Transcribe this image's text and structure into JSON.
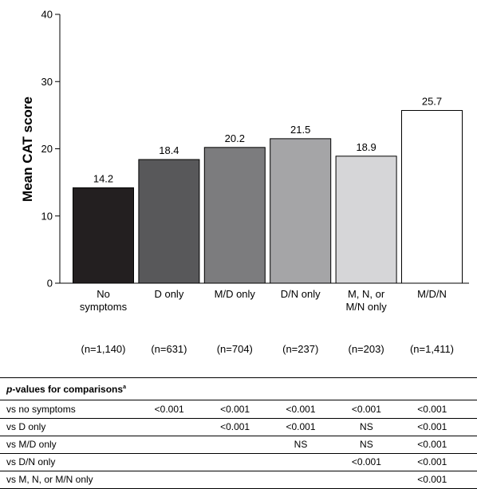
{
  "chart_data": {
    "type": "bar",
    "ylabel": "Mean CAT score",
    "xlabel": "",
    "ylim": [
      0,
      40
    ],
    "yticks": [
      0,
      10,
      20,
      30,
      40
    ],
    "categories": [
      {
        "label_lines": [
          "No",
          "symptoms"
        ],
        "n": "(n=1,140)"
      },
      {
        "label_lines": [
          "D only"
        ],
        "n": "(n=631)"
      },
      {
        "label_lines": [
          "M/D only"
        ],
        "n": "(n=704)"
      },
      {
        "label_lines": [
          "D/N only"
        ],
        "n": "(n=237)"
      },
      {
        "label_lines": [
          "M, N, or",
          "M/N only"
        ],
        "n": "(n=203)"
      },
      {
        "label_lines": [
          "M/D/N"
        ],
        "n": "(n=1,411)"
      }
    ],
    "values": [
      14.2,
      18.4,
      20.2,
      21.5,
      18.9,
      25.7
    ],
    "value_labels": [
      "14.2",
      "18.4",
      "20.2",
      "21.5",
      "18.9",
      "25.7"
    ],
    "bar_colors": [
      "#231f20",
      "#58585a",
      "#7c7c7e",
      "#a5a5a7",
      "#d6d6d8",
      "#ffffff"
    ]
  },
  "pvalues": {
    "header_italic": "p",
    "header_rest": "-values for comparisons",
    "header_sup": "a",
    "rows": [
      {
        "label": "vs no symptoms",
        "cells": [
          "<0.001",
          "<0.001",
          "<0.001",
          "<0.001",
          "<0.001"
        ]
      },
      {
        "label": "vs D only",
        "cells": [
          "",
          "<0.001",
          "<0.001",
          "NS",
          "<0.001"
        ]
      },
      {
        "label": "vs M/D only",
        "cells": [
          "",
          "",
          "NS",
          "NS",
          "<0.001"
        ]
      },
      {
        "label": "vs D/N only",
        "cells": [
          "",
          "",
          "",
          "<0.001",
          "<0.001"
        ]
      },
      {
        "label": "vs M, N, or M/N only",
        "cells": [
          "",
          "",
          "",
          "",
          "<0.001"
        ]
      }
    ]
  }
}
